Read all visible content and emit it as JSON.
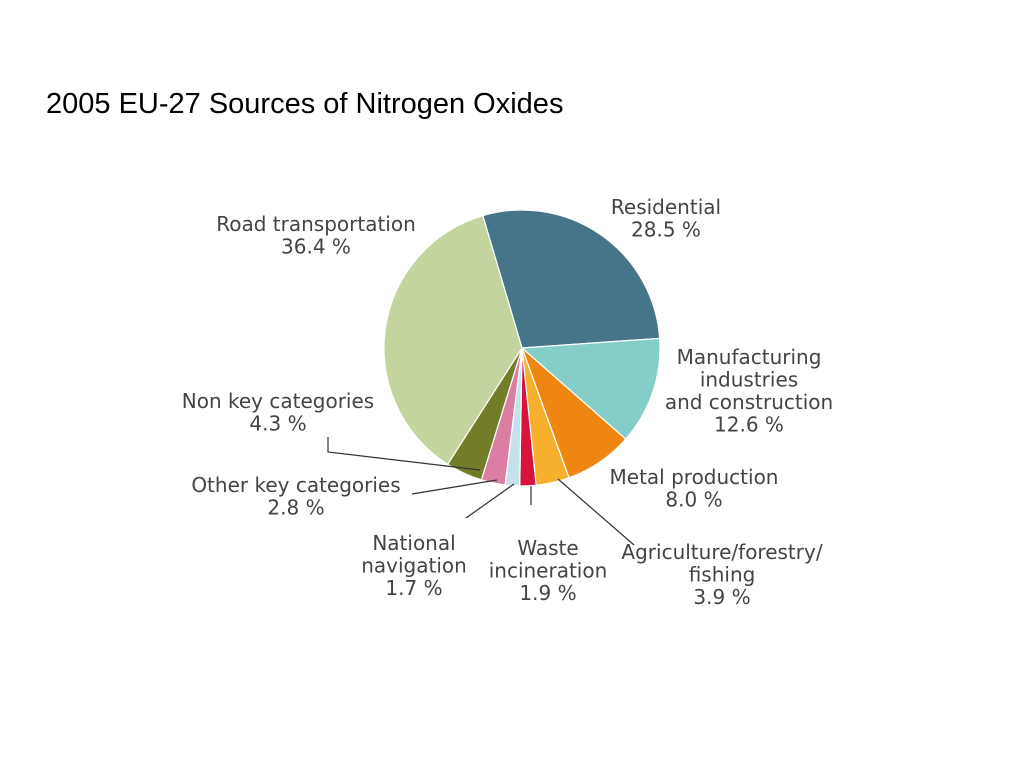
{
  "chart_data": {
    "type": "pie",
    "title": "2005 EU-27 Sources of Nitrogen Oxides",
    "slices": [
      {
        "key": "residential",
        "label_lines": [
          "Residential"
        ],
        "value_text": "28.5 %",
        "value": 28.5,
        "color": "#467489"
      },
      {
        "key": "manufacturing",
        "label_lines": [
          "Manufacturing",
          "industries",
          "and construction"
        ],
        "value_text": "12.6 %",
        "value": 12.6,
        "color": "#85cdc8"
      },
      {
        "key": "metal",
        "label_lines": [
          "Metal production"
        ],
        "value_text": "8.0 %",
        "value": 8.0,
        "color": "#ee8611"
      },
      {
        "key": "agriculture",
        "label_lines": [
          "Agriculture/forestry/",
          "fishing"
        ],
        "value_text": "3.9 %",
        "value": 3.9,
        "color": "#f7b02e"
      },
      {
        "key": "waste",
        "label_lines": [
          "Waste",
          "incineration"
        ],
        "value_text": "1.9 %",
        "value": 1.9,
        "color": "#d8143c"
      },
      {
        "key": "navigation",
        "label_lines": [
          "National",
          "navigation"
        ],
        "value_text": "1.7 %",
        "value": 1.7,
        "color": "#c5e2ec"
      },
      {
        "key": "other-key",
        "label_lines": [
          "Other key categories"
        ],
        "value_text": "2.8 %",
        "value": 2.8,
        "color": "#dc7da3"
      },
      {
        "key": "non-key",
        "label_lines": [
          "Non key categories"
        ],
        "value_text": "4.3 %",
        "value": 4.3,
        "color": "#737d29"
      },
      {
        "key": "road",
        "label_lines": [
          "Road transportation"
        ],
        "value_text": "36.4 %",
        "value": 36.4,
        "color": "#c4d49e"
      }
    ]
  }
}
